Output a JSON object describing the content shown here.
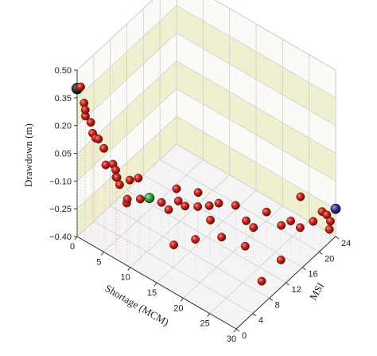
{
  "chart_data": {
    "type": "scatter",
    "projection": "3d",
    "title": "",
    "xlabel": "Shortage (MCM)",
    "ylabel": "MSI",
    "zlabel": "Drawdown (m)",
    "xlim": [
      0,
      30
    ],
    "ylim": [
      0,
      24
    ],
    "zlim": [
      -0.4,
      0.5
    ],
    "x_ticks": [
      "0",
      "5",
      "10",
      "15",
      "20",
      "25",
      "30"
    ],
    "y_ticks": [
      "0",
      "4",
      "8",
      "12",
      "16",
      "20",
      "24"
    ],
    "z_ticks": [
      "0.50",
      "0.35",
      "0.20",
      "0.05",
      "−0.10",
      "−0.25",
      "−0.40"
    ],
    "grid": true,
    "legend": "none",
    "colors": {
      "points": "#b3221c",
      "highlight_start": "#111111",
      "highlight_mid": "#2f9a3a",
      "highlight_end": "#2c2c86",
      "back_band": "#f0efcf",
      "grid_line": "#cfcfcf"
    },
    "series": [
      {
        "points": [
          {
            "x": 0.2,
            "y": 0.6,
            "z": 0.4
          },
          {
            "x": 1.0,
            "y": 0.4,
            "z": 0.33
          },
          {
            "x": 1.3,
            "y": 0.3,
            "z": 0.3
          },
          {
            "x": 1.4,
            "y": 0.2,
            "z": 0.27
          },
          {
            "x": 2.1,
            "y": 0.6,
            "z": 0.24
          },
          {
            "x": 2.3,
            "y": 0.8,
            "z": 0.18
          },
          {
            "x": 2.8,
            "y": 0.9,
            "z": 0.16
          },
          {
            "x": 3.0,
            "y": 1.3,
            "z": 0.15
          },
          {
            "x": 4.1,
            "y": 1.2,
            "z": 0.12
          },
          {
            "x": 5.0,
            "y": 0.5,
            "z": 0.06
          },
          {
            "x": 5.5,
            "y": 1.6,
            "z": 0.05
          },
          {
            "x": 6.1,
            "y": 1.5,
            "z": 0.03
          },
          {
            "x": 6.8,
            "y": 0.7,
            "z": 0.02
          },
          {
            "x": 6.5,
            "y": 1.3,
            "z": 0.0
          },
          {
            "x": 7.0,
            "y": 1.3,
            "z": -0.03
          },
          {
            "x": 9.0,
            "y": 0.6,
            "z": -0.06
          },
          {
            "x": 9.2,
            "y": 0.2,
            "z": -0.07
          },
          {
            "x": 9.0,
            "y": 1.2,
            "z": 0.03
          },
          {
            "x": 9.5,
            "y": 2.6,
            "z": 0.02
          },
          {
            "x": 10.5,
            "y": 1.8,
            "z": -0.06
          },
          {
            "x": 12.0,
            "y": 5.0,
            "z": -0.12
          },
          {
            "x": 13.5,
            "y": 4.8,
            "z": -0.13
          },
          {
            "x": 12.5,
            "y": 8.0,
            "z": -0.1
          },
          {
            "x": 14.5,
            "y": 7.5,
            "z": -0.15
          },
          {
            "x": 14.0,
            "y": 6.5,
            "z": -0.11
          },
          {
            "x": 15.0,
            "y": 10.0,
            "z": -0.12
          },
          {
            "x": 16.5,
            "y": 8.0,
            "z": -0.13
          },
          {
            "x": 17.5,
            "y": 9.5,
            "z": -0.14
          },
          {
            "x": 18.5,
            "y": 10.5,
            "z": -0.13
          },
          {
            "x": 15.5,
            "y": 3.5,
            "z": -0.26
          },
          {
            "x": 18.0,
            "y": 5.5,
            "z": -0.23
          },
          {
            "x": 18.5,
            "y": 8.5,
            "z": -0.18
          },
          {
            "x": 20.5,
            "y": 12.0,
            "z": -0.14
          },
          {
            "x": 21.0,
            "y": 8.0,
            "z": -0.22
          },
          {
            "x": 22.5,
            "y": 12.0,
            "z": -0.19
          },
          {
            "x": 23.5,
            "y": 12.5,
            "z": -0.22
          },
          {
            "x": 24.0,
            "y": 15.0,
            "z": -0.18
          },
          {
            "x": 23.5,
            "y": 10.5,
            "z": -0.28
          },
          {
            "x": 26.0,
            "y": 16.0,
            "z": -0.24
          },
          {
            "x": 26.5,
            "y": 20.0,
            "z": -0.16
          },
          {
            "x": 27.0,
            "y": 17.0,
            "z": -0.22
          },
          {
            "x": 28.0,
            "y": 18.0,
            "z": -0.26
          },
          {
            "x": 27.5,
            "y": 14.0,
            "z": -0.36
          },
          {
            "x": 28.5,
            "y": 20.5,
            "z": -0.27
          },
          {
            "x": 29.0,
            "y": 22.0,
            "z": -0.24
          },
          {
            "x": 29.5,
            "y": 22.5,
            "z": -0.26
          },
          {
            "x": 27.0,
            "y": 10.0,
            "z": -0.4
          },
          {
            "x": 29.8,
            "y": 23.0,
            "z": -0.3
          },
          {
            "x": 30.0,
            "y": 22.5,
            "z": -0.33
          }
        ]
      },
      {
        "points": [
          {
            "x": 0.0,
            "y": 0.0,
            "z": 0.4
          }
        ]
      },
      {
        "points": [
          {
            "x": 10.5,
            "y": 4.0,
            "z": -0.1
          }
        ]
      },
      {
        "points": [
          {
            "x": 30.0,
            "y": 24.0,
            "z": -0.25
          }
        ]
      }
    ]
  }
}
